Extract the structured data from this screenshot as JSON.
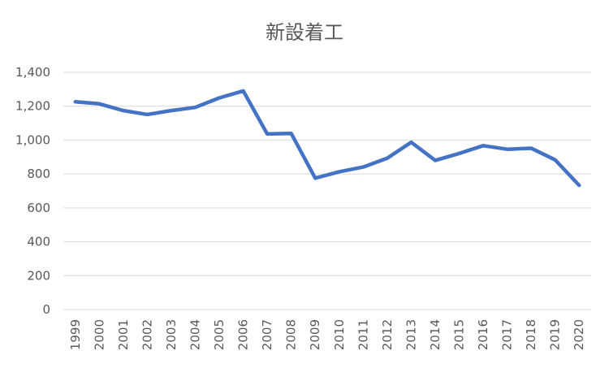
{
  "chart_data": {
    "type": "line",
    "title": "新設着工",
    "xlabel": "",
    "ylabel": "",
    "categories": [
      "1999",
      "2000",
      "2001",
      "2002",
      "2003",
      "2004",
      "2005",
      "2006",
      "2007",
      "2008",
      "2009",
      "2010",
      "2011",
      "2012",
      "2013",
      "2014",
      "2015",
      "2016",
      "2017",
      "2018",
      "2019",
      "2020"
    ],
    "series": [
      {
        "color": "#4472C4",
        "values": [
          1226,
          1214,
          1174,
          1151,
          1174,
          1193,
          1249,
          1290,
          1036,
          1039,
          775,
          813,
          841,
          893,
          987,
          880,
          921,
          967,
          946,
          952,
          883,
          733
        ]
      }
    ],
    "ylim": [
      0,
      1400
    ],
    "yticks": [
      "0",
      "200",
      "400",
      "600",
      "800",
      "1,000",
      "1,200",
      "1,400"
    ],
    "grid": true,
    "legend": "none"
  }
}
